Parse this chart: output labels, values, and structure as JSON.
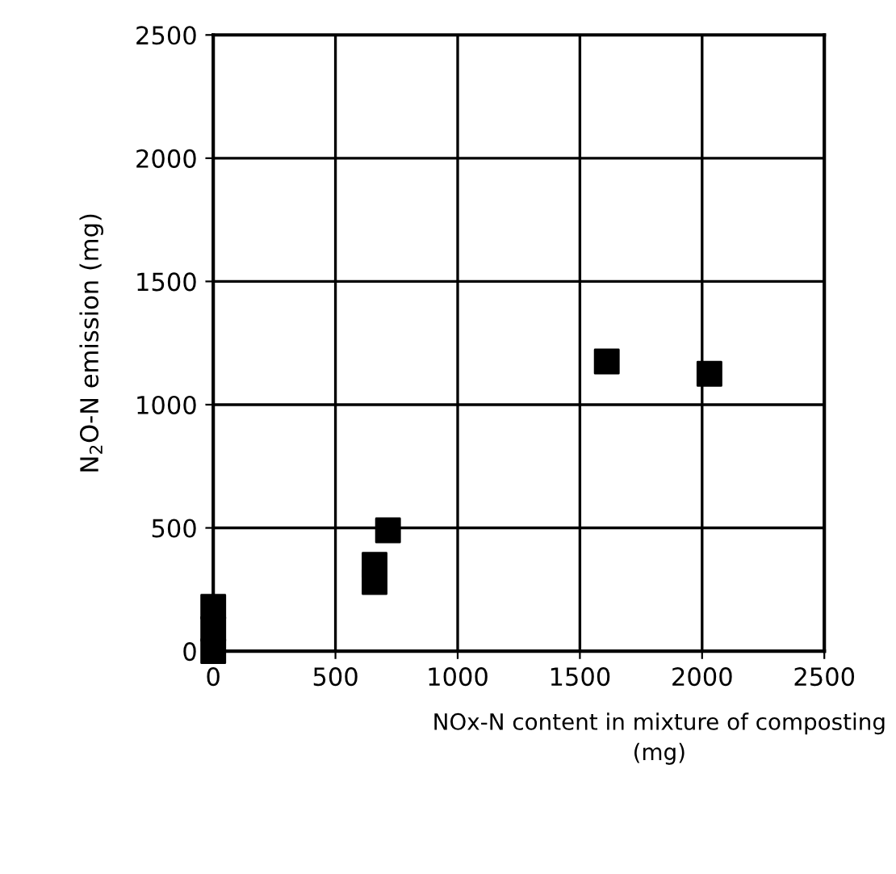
{
  "chart_data": {
    "type": "scatter",
    "xlabel": "NOx-N content in mixture of composting\n(mg)",
    "ylabel": "N$_{2}$O-N emission (mg)",
    "series": [
      {
        "color": "#000000",
        "x": [
          0,
          0,
          0,
          660,
          660,
          715,
          1610,
          2030
        ],
        "values": [
          0,
          90,
          180,
          280,
          350,
          490,
          1175,
          1125
        ]
      }
    ],
    "xlim": [
      0,
      2500
    ],
    "ylim": [
      0,
      2500
    ],
    "xticks": [
      0,
      500,
      1000,
      1500,
      2000,
      2500
    ],
    "yticks": [
      0,
      500,
      1000,
      1500,
      2000,
      2500
    ],
    "grid": true,
    "marker": "square",
    "legend": false
  }
}
